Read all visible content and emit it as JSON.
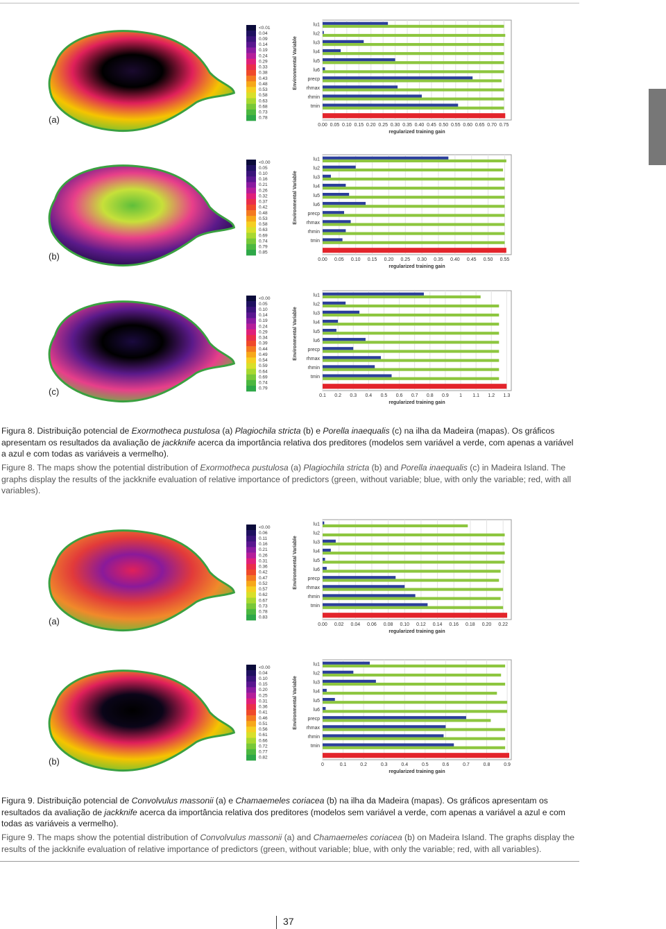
{
  "chart_data": [
    {
      "type": "bar",
      "panel": "(a)",
      "ylabel": "Environmental Variable",
      "xlabel": "regularized training gain",
      "categories": [
        "lu1",
        "lu2",
        "lu3",
        "lu4",
        "lu5",
        "lu6",
        "precp",
        "rhmax",
        "rhmin",
        "tmin",
        null
      ],
      "series": [
        {
          "color": "#8dc63f",
          "values": [
            0.75,
            0.755,
            0.75,
            0.75,
            0.75,
            0.75,
            0.74,
            0.75,
            0.75,
            0.75,
            null
          ]
        },
        {
          "color": "#2b3f9a",
          "values": [
            0.27,
            0.005,
            0.17,
            0.075,
            0.3,
            0.01,
            0.62,
            0.31,
            0.41,
            0.56,
            null
          ]
        },
        {
          "color": "#e3242b",
          "values": [
            null,
            null,
            null,
            null,
            null,
            null,
            null,
            null,
            null,
            null,
            0.755
          ]
        }
      ],
      "xlim": [
        0,
        0.78
      ],
      "xticks": [
        {
          "value": 0,
          "label": "0.00"
        },
        0.05,
        {
          "value": 0.1,
          "label": "0.10"
        },
        0.15,
        {
          "value": 0.2,
          "label": "0.20"
        },
        0.25,
        {
          "value": 0.3,
          "label": "0.30"
        },
        0.35,
        {
          "value": 0.4,
          "label": "0.40"
        },
        0.45,
        {
          "value": 0.5,
          "label": "0.50"
        },
        0.55,
        {
          "value": 0.6,
          "label": "0.60"
        },
        0.65,
        {
          "value": 0.7,
          "label": "0.70"
        },
        0.75
      ],
      "grid": true,
      "scale_labels": [
        "<0.01",
        "0.04",
        "0.09",
        "0.14",
        "0.19",
        "0.24",
        "0.29",
        "0.33",
        "0.38",
        "0.43",
        "0.48",
        "0.53",
        "0.58",
        "0.63",
        "0.68",
        "0.73",
        "0.78"
      ]
    },
    {
      "type": "bar",
      "panel": "(b)",
      "ylabel": "Environmental Variable",
      "xlabel": "regularized training gain",
      "categories": [
        "lu1",
        "lu2",
        "lu3",
        "lu4",
        "lu5",
        "lu6",
        "precp",
        "rhmax",
        "rhmin",
        "tmin",
        null
      ],
      "series": [
        {
          "color": "#8dc63f",
          "values": [
            0.555,
            0.545,
            0.55,
            0.55,
            0.55,
            0.55,
            0.55,
            0.55,
            0.55,
            0.55,
            null
          ]
        },
        {
          "color": "#2b3f9a",
          "values": [
            0.38,
            0.1,
            0.025,
            0.07,
            0.08,
            0.13,
            0.065,
            0.085,
            0.07,
            0.06,
            null
          ]
        },
        {
          "color": "#e3242b",
          "values": [
            null,
            null,
            null,
            null,
            null,
            null,
            null,
            null,
            null,
            null,
            0.555
          ]
        }
      ],
      "xlim": [
        0,
        0.57
      ],
      "xticks": [
        {
          "value": 0,
          "label": "0.00"
        },
        0.05,
        {
          "value": 0.1,
          "label": "0.10"
        },
        0.15,
        {
          "value": 0.2,
          "label": "0.20"
        },
        0.25,
        {
          "value": 0.3,
          "label": "0.30"
        },
        0.35,
        {
          "value": 0.4,
          "label": "0.40"
        },
        0.45,
        {
          "value": 0.5,
          "label": "0.50"
        },
        0.55
      ],
      "grid": true,
      "scale_labels": [
        "<0.00",
        "0.05",
        "0.10",
        "0.16",
        "0.21",
        "0.26",
        "0.32",
        "0.37",
        "0.42",
        "0.48",
        "0.53",
        "0.58",
        "0.63",
        "0.69",
        "0.74",
        "0.79",
        "0.85"
      ]
    },
    {
      "type": "bar",
      "panel": "(c)",
      "ylabel": "Environmental Variable",
      "xlabel": "regularized training gain",
      "categories": [
        "lu1",
        "lu2",
        "lu3",
        "lu4",
        "lu5",
        "lu6",
        "precp",
        "rhmax",
        "rhmin",
        "tmin",
        null
      ],
      "series": [
        {
          "color": "#8dc63f",
          "values": [
            1.13,
            1.25,
            1.25,
            1.25,
            1.25,
            1.25,
            1.25,
            1.25,
            1.25,
            1.25,
            null
          ]
        },
        {
          "color": "#2b3f9a",
          "values": [
            0.76,
            0.25,
            0.34,
            0.2,
            0.19,
            0.38,
            0.3,
            0.48,
            0.44,
            0.55,
            null
          ]
        },
        {
          "color": "#e3242b",
          "values": [
            null,
            null,
            null,
            null,
            null,
            null,
            null,
            null,
            null,
            null,
            1.3
          ]
        }
      ],
      "xlim": [
        0.1,
        1.33
      ],
      "xticks": [
        0.1,
        0.2,
        0.3,
        0.4,
        0.5,
        0.6,
        0.7,
        0.8,
        0.9,
        1,
        1.1,
        1.2,
        1.3
      ],
      "grid": true,
      "scale_labels": [
        "<0.00",
        "0.05",
        "0.10",
        "0.14",
        "0.19",
        "0.24",
        "0.29",
        "0.34",
        "0.39",
        "0.44",
        "0.49",
        "0.54",
        "0.59",
        "0.64",
        "0.69",
        "0.74",
        "0.79"
      ]
    },
    {
      "type": "bar",
      "panel": "(a)",
      "ylabel": "Environmental Variable",
      "xlabel": "regularized training gain",
      "categories": [
        "lu1",
        "lu2",
        "lu3",
        "lu4",
        "lu5",
        "lu6",
        "precp",
        "rhmax",
        "rhmin",
        "tmin",
        null
      ],
      "series": [
        {
          "color": "#8dc63f",
          "values": [
            0.177,
            0.222,
            0.222,
            0.222,
            0.222,
            0.217,
            0.215,
            0.22,
            0.217,
            0.22,
            null
          ]
        },
        {
          "color": "#2b3f9a",
          "values": [
            0.002,
            0,
            0.016,
            0.01,
            0.003,
            0.005,
            0.089,
            0.1,
            0.113,
            0.128,
            null
          ]
        },
        {
          "color": "#e3242b",
          "values": [
            null,
            null,
            null,
            null,
            null,
            null,
            null,
            null,
            null,
            null,
            0.225
          ]
        }
      ],
      "xlim": [
        0,
        0.23
      ],
      "xticks": [
        {
          "value": 0,
          "label": "0.00"
        },
        0.02,
        0.04,
        0.06,
        0.08,
        {
          "value": 0.1,
          "label": "0.10"
        },
        0.12,
        0.14,
        0.16,
        0.18,
        {
          "value": 0.2,
          "label": "0.20"
        },
        0.22
      ],
      "grid": true,
      "scale_labels": [
        "<0.00",
        "0.06",
        "0.11",
        "0.16",
        "0.21",
        "0.26",
        "0.31",
        "0.36",
        "0.42",
        "0.47",
        "0.52",
        "0.57",
        "0.62",
        "0.67",
        "0.73",
        "0.78",
        "0.83"
      ]
    },
    {
      "type": "bar",
      "panel": "(b)",
      "ylabel": "Environmental Variable",
      "xlabel": "regularized training gain",
      "categories": [
        "lu1",
        "lu2",
        "lu3",
        "lu4",
        "lu5",
        "lu6",
        "precp",
        "rhmax",
        "rhmin",
        "tmin",
        null
      ],
      "series": [
        {
          "color": "#8dc63f",
          "values": [
            0.89,
            0.87,
            0.89,
            0.85,
            0.9,
            0.9,
            0.82,
            0.89,
            0.89,
            0.89,
            null
          ]
        },
        {
          "color": "#2b3f9a",
          "values": [
            0.23,
            0.15,
            0.26,
            0.02,
            0.06,
            0.015,
            0.7,
            0.6,
            0.59,
            0.64,
            null
          ]
        },
        {
          "color": "#e3242b",
          "values": [
            null,
            null,
            null,
            null,
            null,
            null,
            null,
            null,
            null,
            null,
            0.91
          ]
        }
      ],
      "xlim": [
        0,
        0.92
      ],
      "xticks": [
        0,
        0.1,
        0.2,
        0.3,
        0.4,
        0.5,
        0.6,
        0.7,
        0.8,
        0.9
      ],
      "grid": true,
      "scale_labels": [
        "<0.00",
        "0.04",
        "0.10",
        "0.15",
        "0.20",
        "0.25",
        "0.31",
        "0.36",
        "0.41",
        "0.46",
        "0.51",
        "0.56",
        "0.61",
        "0.66",
        "0.72",
        "0.77",
        "0.82"
      ]
    }
  ],
  "figures": [
    {
      "caption_pt": [
        "Figura 8. Distribuição potencial de ",
        "Exormotheca pustulosa",
        " (a) ",
        "Plagiochila stricta",
        " (b) e ",
        "Porella inaequalis",
        " (c) na ilha da Madeira (mapas). Os gráficos apresentam os resultados da avaliação de ",
        "jackknife",
        " acerca da importância relativa dos preditores (modelos sem variável a verde, com apenas a variável a azul e com todas as variáveis a vermelho)."
      ],
      "caption_en": [
        "Figure 8. The maps show the potential distribution of ",
        "Exormotheca pustulosa",
        " (a) ",
        "Plagiochila stricta",
        " (b) and ",
        "Porella inaequalis",
        " (c) in Madeira Island. The graphs display the results of the jackknife evaluation of relative importance of predictors (green, without variable; blue, with only the variable; red, with all variables)."
      ]
    },
    {
      "caption_pt": [
        "Figura 9. Distribuição potencial de ",
        "Convolvulus massonii",
        " (a) e ",
        "Chamaemeles coriacea",
        " (b) na ilha da Madeira (mapas). Os gráficos apresentam os resultados da avaliação de ",
        "jackknife",
        " acerca da importância relativa dos preditores (modelos sem variável a verde, com apenas a variável a azul e com todas as variáveis a vermelho)."
      ],
      "caption_en": [
        "Figure 9. The maps show the potential distribution of ",
        "Convolvulus massonii",
        " (a) and ",
        "Chamaemeles coriacea",
        " (b) on Madeira Island. The graphs display the results of the jackknife evaluation of relative importance of predictors (green, without variable; blue, with only the variable; red, with all variables)."
      ]
    }
  ],
  "page_number": "37"
}
